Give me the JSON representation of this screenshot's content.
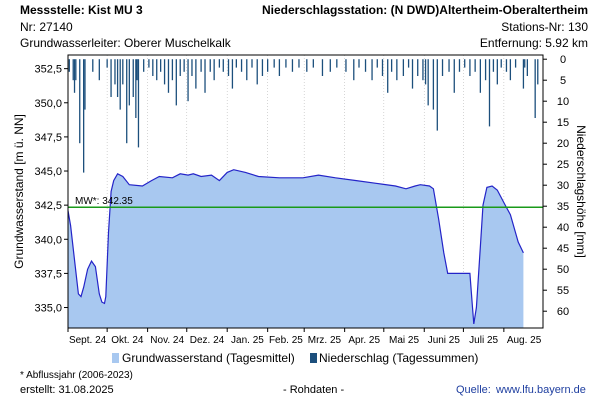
{
  "header": {
    "messstelle": "Messstelle: Kist MU 3",
    "nr": "Nr: 27140",
    "grundwasserleiter": "Grundwasserleiter:   Oberer Muschelkalk",
    "station": "Niederschlagsstation: (N DWD)Altertheim-Oberaltertheim",
    "stations_nr": "Stations-Nr: 130",
    "entfernung": "Entfernung: 5.92 km"
  },
  "footer": {
    "abflussjahr": "* Abflussjahr (2006-2023)",
    "erstellt": "erstellt:  31.08.2025",
    "rohdaten": "- Rohdaten -",
    "quelle_label": "Quelle:",
    "quelle_url": "www.lfu.bayern.de"
  },
  "colors": {
    "area_fill": "#a8c8f0",
    "area_line": "#2424c8",
    "bars": "#1c4f7c",
    "mean_line": "#1a9a1a",
    "grid": "#bbbbbb"
  },
  "chart_data": {
    "type": "area",
    "x_start": "2024-09-01",
    "x_end": "2025-08-31",
    "x_ticks": [
      "Sept. 24",
      "Okt. 24",
      "Nov. 24",
      "Dez. 24",
      "Jan. 25",
      "Feb. 25",
      "Mrz. 25",
      "Apr. 25",
      "Mai 25",
      "Juni 25",
      "Juli 25",
      "Aug. 25"
    ],
    "ylabel_left": "Grundwasserstand [m ü. NN]",
    "ylabel_right": "Niederschlagshöhe [mm]",
    "ylim_left": [
      333.5,
      353.5
    ],
    "yticks_left": [
      335.0,
      337.5,
      340.0,
      342.5,
      345.0,
      347.5,
      350.0,
      352.5
    ],
    "ylim_right": [
      64,
      -1
    ],
    "yticks_right": [
      0,
      5,
      10,
      15,
      20,
      25,
      30,
      35,
      40,
      45,
      50,
      55,
      60
    ],
    "mean": {
      "label": "MW*: 342.35",
      "value": 342.35
    },
    "series": [
      {
        "name": "Grundwasserstand (Tagesmittel)",
        "kind": "area",
        "points": [
          [
            "2024-09-01",
            342.1
          ],
          [
            "2024-09-03",
            341.0
          ],
          [
            "2024-09-06",
            338.5
          ],
          [
            "2024-09-09",
            336.0
          ],
          [
            "2024-09-11",
            335.8
          ],
          [
            "2024-09-13",
            336.5
          ],
          [
            "2024-09-16",
            337.8
          ],
          [
            "2024-09-19",
            338.4
          ],
          [
            "2024-09-22",
            338.0
          ],
          [
            "2024-09-25",
            336.0
          ],
          [
            "2024-09-27",
            335.4
          ],
          [
            "2024-09-29",
            335.3
          ],
          [
            "2024-09-30",
            335.8
          ],
          [
            "2024-10-02",
            340.5
          ],
          [
            "2024-10-04",
            343.5
          ],
          [
            "2024-10-06",
            344.3
          ],
          [
            "2024-10-09",
            344.8
          ],
          [
            "2024-10-13",
            344.6
          ],
          [
            "2024-10-18",
            344.0
          ],
          [
            "2024-10-28",
            343.9
          ],
          [
            "2024-11-04",
            344.3
          ],
          [
            "2024-11-10",
            344.6
          ],
          [
            "2024-11-20",
            344.5
          ],
          [
            "2024-11-26",
            344.8
          ],
          [
            "2024-12-02",
            344.7
          ],
          [
            "2024-12-06",
            344.8
          ],
          [
            "2024-12-12",
            344.6
          ],
          [
            "2024-12-20",
            344.7
          ],
          [
            "2024-12-26",
            344.3
          ],
          [
            "2025-01-01",
            344.9
          ],
          [
            "2025-01-06",
            345.1
          ],
          [
            "2025-01-15",
            344.9
          ],
          [
            "2025-01-25",
            344.6
          ],
          [
            "2025-02-10",
            344.5
          ],
          [
            "2025-02-28",
            344.5
          ],
          [
            "2025-03-12",
            344.7
          ],
          [
            "2025-03-25",
            344.5
          ],
          [
            "2025-04-10",
            344.3
          ],
          [
            "2025-04-25",
            344.1
          ],
          [
            "2025-05-10",
            343.9
          ],
          [
            "2025-05-18",
            343.7
          ],
          [
            "2025-05-25",
            343.9
          ],
          [
            "2025-05-29",
            344.0
          ],
          [
            "2025-06-05",
            343.9
          ],
          [
            "2025-06-08",
            343.7
          ],
          [
            "2025-06-12",
            341.5
          ],
          [
            "2025-06-16",
            339.0
          ],
          [
            "2025-06-19",
            337.5
          ],
          [
            "2025-07-06",
            337.5
          ],
          [
            "2025-07-08",
            335.0
          ],
          [
            "2025-07-09",
            333.8
          ],
          [
            "2025-07-11",
            335.0
          ],
          [
            "2025-07-14",
            339.5
          ],
          [
            "2025-07-16",
            342.5
          ],
          [
            "2025-07-19",
            343.8
          ],
          [
            "2025-07-23",
            343.9
          ],
          [
            "2025-07-27",
            343.6
          ],
          [
            "2025-08-02",
            342.5
          ],
          [
            "2025-08-06",
            341.8
          ],
          [
            "2025-08-12",
            339.8
          ],
          [
            "2025-08-16",
            339.0
          ]
        ]
      },
      {
        "name": "Niederschlag (Tagessummen)",
        "kind": "bar",
        "axis": "right",
        "points": [
          [
            "2024-09-02",
            3
          ],
          [
            "2024-09-05",
            5
          ],
          [
            "2024-09-06",
            8
          ],
          [
            "2024-09-07",
            5
          ],
          [
            "2024-09-10",
            20
          ],
          [
            "2024-09-13",
            27
          ],
          [
            "2024-09-14",
            12
          ],
          [
            "2024-09-20",
            3
          ],
          [
            "2024-09-25",
            5
          ],
          [
            "2024-10-01",
            2
          ],
          [
            "2024-10-04",
            9
          ],
          [
            "2024-10-07",
            6
          ],
          [
            "2024-10-09",
            9
          ],
          [
            "2024-10-11",
            12
          ],
          [
            "2024-10-13",
            6
          ],
          [
            "2024-10-16",
            20
          ],
          [
            "2024-10-18",
            11
          ],
          [
            "2024-10-21",
            9
          ],
          [
            "2024-10-23",
            14
          ],
          [
            "2024-10-24",
            5
          ],
          [
            "2024-10-25",
            21
          ],
          [
            "2024-10-29",
            3
          ],
          [
            "2024-11-02",
            2
          ],
          [
            "2024-11-05",
            4
          ],
          [
            "2024-11-08",
            5
          ],
          [
            "2024-11-11",
            3
          ],
          [
            "2024-11-14",
            6
          ],
          [
            "2024-11-17",
            8
          ],
          [
            "2024-11-20",
            5
          ],
          [
            "2024-11-23",
            11
          ],
          [
            "2024-11-26",
            4
          ],
          [
            "2024-11-29",
            3
          ],
          [
            "2024-12-02",
            10
          ],
          [
            "2024-12-05",
            4
          ],
          [
            "2024-12-08",
            7
          ],
          [
            "2024-12-12",
            3
          ],
          [
            "2024-12-15",
            8
          ],
          [
            "2024-12-19",
            3
          ],
          [
            "2024-12-22",
            5
          ],
          [
            "2024-12-26",
            2
          ],
          [
            "2024-12-29",
            3
          ],
          [
            "2025-01-02",
            4
          ],
          [
            "2025-01-05",
            7
          ],
          [
            "2025-01-08",
            2
          ],
          [
            "2025-01-12",
            3
          ],
          [
            "2025-01-16",
            5
          ],
          [
            "2025-01-20",
            2
          ],
          [
            "2025-01-24",
            6
          ],
          [
            "2025-01-28",
            4
          ],
          [
            "2025-02-01",
            3
          ],
          [
            "2025-02-06",
            2
          ],
          [
            "2025-02-10",
            4
          ],
          [
            "2025-02-15",
            2
          ],
          [
            "2025-02-20",
            3
          ],
          [
            "2025-02-25",
            2
          ],
          [
            "2025-03-03",
            3
          ],
          [
            "2025-03-08",
            2
          ],
          [
            "2025-03-15",
            4
          ],
          [
            "2025-03-21",
            3
          ],
          [
            "2025-03-26",
            2
          ],
          [
            "2025-04-02",
            3
          ],
          [
            "2025-04-08",
            5
          ],
          [
            "2025-04-12",
            2
          ],
          [
            "2025-04-17",
            3
          ],
          [
            "2025-04-22",
            5
          ],
          [
            "2025-04-26",
            2
          ],
          [
            "2025-04-30",
            4
          ],
          [
            "2025-05-04",
            8
          ],
          [
            "2025-05-07",
            3
          ],
          [
            "2025-05-11",
            5
          ],
          [
            "2025-05-16",
            4
          ],
          [
            "2025-05-20",
            2
          ],
          [
            "2025-05-23",
            7
          ],
          [
            "2025-05-27",
            4
          ],
          [
            "2025-05-31",
            5
          ],
          [
            "2025-06-02",
            6
          ],
          [
            "2025-06-04",
            11
          ],
          [
            "2025-06-08",
            12
          ],
          [
            "2025-06-11",
            17
          ],
          [
            "2025-06-15",
            4
          ],
          [
            "2025-06-20",
            3
          ],
          [
            "2025-06-24",
            8
          ],
          [
            "2025-06-28",
            3
          ],
          [
            "2025-07-02",
            2
          ],
          [
            "2025-07-06",
            4
          ],
          [
            "2025-07-10",
            3
          ],
          [
            "2025-07-14",
            8
          ],
          [
            "2025-07-18",
            5
          ],
          [
            "2025-07-21",
            16
          ],
          [
            "2025-07-24",
            3
          ],
          [
            "2025-07-27",
            6
          ],
          [
            "2025-07-30",
            2
          ],
          [
            "2025-08-03",
            3
          ],
          [
            "2025-08-06",
            5
          ],
          [
            "2025-08-10",
            2
          ],
          [
            "2025-08-16",
            7
          ],
          [
            "2025-08-17",
            2
          ],
          [
            "2025-08-19",
            4
          ],
          [
            "2025-08-25",
            14
          ],
          [
            "2025-08-27",
            6
          ]
        ]
      }
    ],
    "legend": [
      "Grundwasserstand (Tagesmittel)",
      "Niederschlag (Tagessummen)"
    ],
    "legend_position": "bottom",
    "grid": true
  }
}
